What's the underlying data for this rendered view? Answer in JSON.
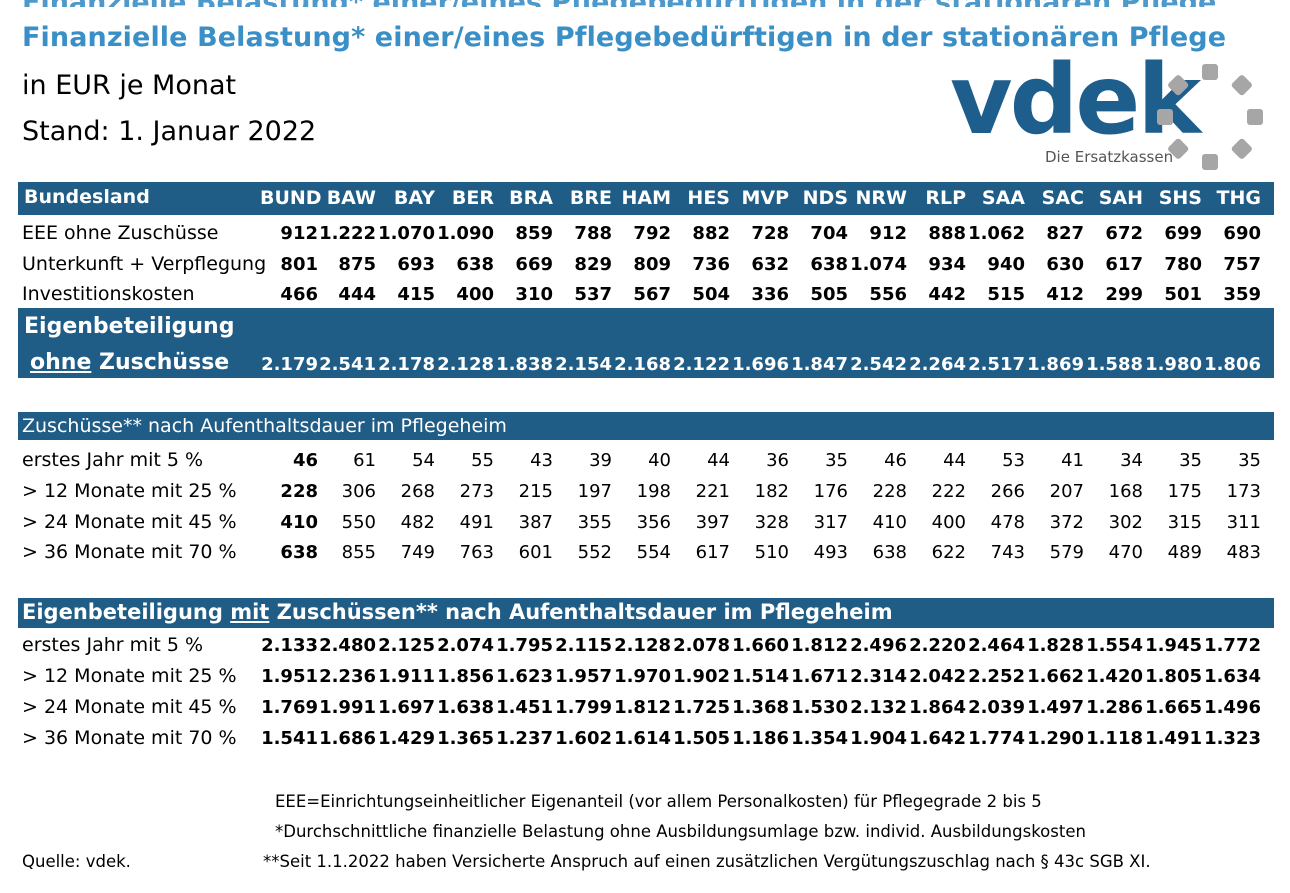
{
  "header": {
    "title": "Finanzielle Belastung* einer/eines Pflegebedürftigen in der stationären Pflege",
    "unit": "in EUR je Monat",
    "date": "Stand: 1. Januar 2022"
  },
  "logo": {
    "wordmark": "vdek",
    "tagline": "Die Ersatzkassen",
    "color": "#1d5e8d"
  },
  "accent_color": "#1f5c86",
  "title_color": "#3a8fc7",
  "columns": [
    "BUND",
    "BAW",
    "BAY",
    "BER",
    "BRA",
    "BRE",
    "HAM",
    "HES",
    "MVP",
    "NDS",
    "NRW",
    "RLP",
    "SAA",
    "SAC",
    "SAH",
    "SHS",
    "THG"
  ],
  "section1": {
    "header_label": "Bundesland",
    "rows": [
      {
        "label": "EEE ohne Zuschüsse",
        "values": [
          "912",
          "1.222",
          "1.070",
          "1.090",
          "859",
          "788",
          "792",
          "882",
          "728",
          "704",
          "912",
          "888",
          "1.062",
          "827",
          "672",
          "699",
          "690"
        ]
      },
      {
        "label": "Unterkunft + Verpflegung",
        "values": [
          "801",
          "875",
          "693",
          "638",
          "669",
          "829",
          "809",
          "736",
          "632",
          "638",
          "1.074",
          "934",
          "940",
          "630",
          "617",
          "780",
          "757"
        ]
      },
      {
        "label": "Investitionskosten",
        "values": [
          "466",
          "444",
          "415",
          "400",
          "310",
          "537",
          "567",
          "504",
          "336",
          "505",
          "556",
          "442",
          "515",
          "412",
          "299",
          "501",
          "359"
        ]
      }
    ],
    "total_label_1": "Eigenbeteiligung",
    "total_label_2a": "ohne",
    "total_label_2b": " Zuschüsse",
    "total_values": [
      "2.179",
      "2.541",
      "2.178",
      "2.128",
      "1.838",
      "2.154",
      "2.168",
      "2.122",
      "1.696",
      "1.847",
      "2.542",
      "2.264",
      "2.517",
      "1.869",
      "1.588",
      "1.980",
      "1.806"
    ]
  },
  "section2": {
    "header_label": "Zuschüsse** nach Aufenthaltsdauer im Pflegeheim",
    "rows": [
      {
        "label": "erstes Jahr mit 5 %",
        "values": [
          "46",
          "61",
          "54",
          "55",
          "43",
          "39",
          "40",
          "44",
          "36",
          "35",
          "46",
          "44",
          "53",
          "41",
          "34",
          "35",
          "35"
        ]
      },
      {
        "label": "> 12 Monate mit 25 %",
        "values": [
          "228",
          "306",
          "268",
          "273",
          "215",
          "197",
          "198",
          "221",
          "182",
          "176",
          "228",
          "222",
          "266",
          "207",
          "168",
          "175",
          "173"
        ]
      },
      {
        "label": "> 24 Monate mit 45 %",
        "values": [
          "410",
          "550",
          "482",
          "491",
          "387",
          "355",
          "356",
          "397",
          "328",
          "317",
          "410",
          "400",
          "478",
          "372",
          "302",
          "315",
          "311"
        ]
      },
      {
        "label": "> 36 Monate mit 70 %",
        "values": [
          "638",
          "855",
          "749",
          "763",
          "601",
          "552",
          "554",
          "617",
          "510",
          "493",
          "638",
          "622",
          "743",
          "579",
          "470",
          "489",
          "483"
        ]
      }
    ]
  },
  "section3": {
    "header_a": "Eigenbeteiligung ",
    "header_b": "mit",
    "header_c": " Zuschüssen** nach Aufenthaltsdauer im Pflegeheim",
    "rows": [
      {
        "label": "erstes Jahr mit 5 %",
        "values": [
          "2.133",
          "2.480",
          "2.125",
          "2.074",
          "1.795",
          "2.115",
          "2.128",
          "2.078",
          "1.660",
          "1.812",
          "2.496",
          "2.220",
          "2.464",
          "1.828",
          "1.554",
          "1.945",
          "1.772"
        ]
      },
      {
        "label": "> 12 Monate mit 25 %",
        "values": [
          "1.951",
          "2.236",
          "1.911",
          "1.856",
          "1.623",
          "1.957",
          "1.970",
          "1.902",
          "1.514",
          "1.671",
          "2.314",
          "2.042",
          "2.252",
          "1.662",
          "1.420",
          "1.805",
          "1.634"
        ]
      },
      {
        "label": "> 24 Monate mit 45 %",
        "values": [
          "1.769",
          "1.991",
          "1.697",
          "1.638",
          "1.451",
          "1.799",
          "1.812",
          "1.725",
          "1.368",
          "1.530",
          "2.132",
          "1.864",
          "2.039",
          "1.497",
          "1.286",
          "1.665",
          "1.496"
        ]
      },
      {
        "label": "> 36 Monate mit 70 %",
        "values": [
          "1.541",
          "1.686",
          "1.429",
          "1.365",
          "1.237",
          "1.602",
          "1.614",
          "1.505",
          "1.186",
          "1.354",
          "1.904",
          "1.642",
          "1.774",
          "1.290",
          "1.118",
          "1.491",
          "1.323"
        ]
      }
    ]
  },
  "footnotes": {
    "eee": "EEE=Einrichtungseinheitlicher Eigenanteil (vor allem Personalkosten) für Pflegegrade 2 bis 5",
    "star": "*Durchschnittliche finanzielle Belastung ohne Ausbildungsumlage bzw. individ. Ausbildungskosten",
    "doublestar": "**Seit 1.1.2022 haben Versicherte Anspruch auf einen zusätzlichen Vergütungszuschlag nach § 43c SGB XI.",
    "source": "Quelle: vdek."
  }
}
